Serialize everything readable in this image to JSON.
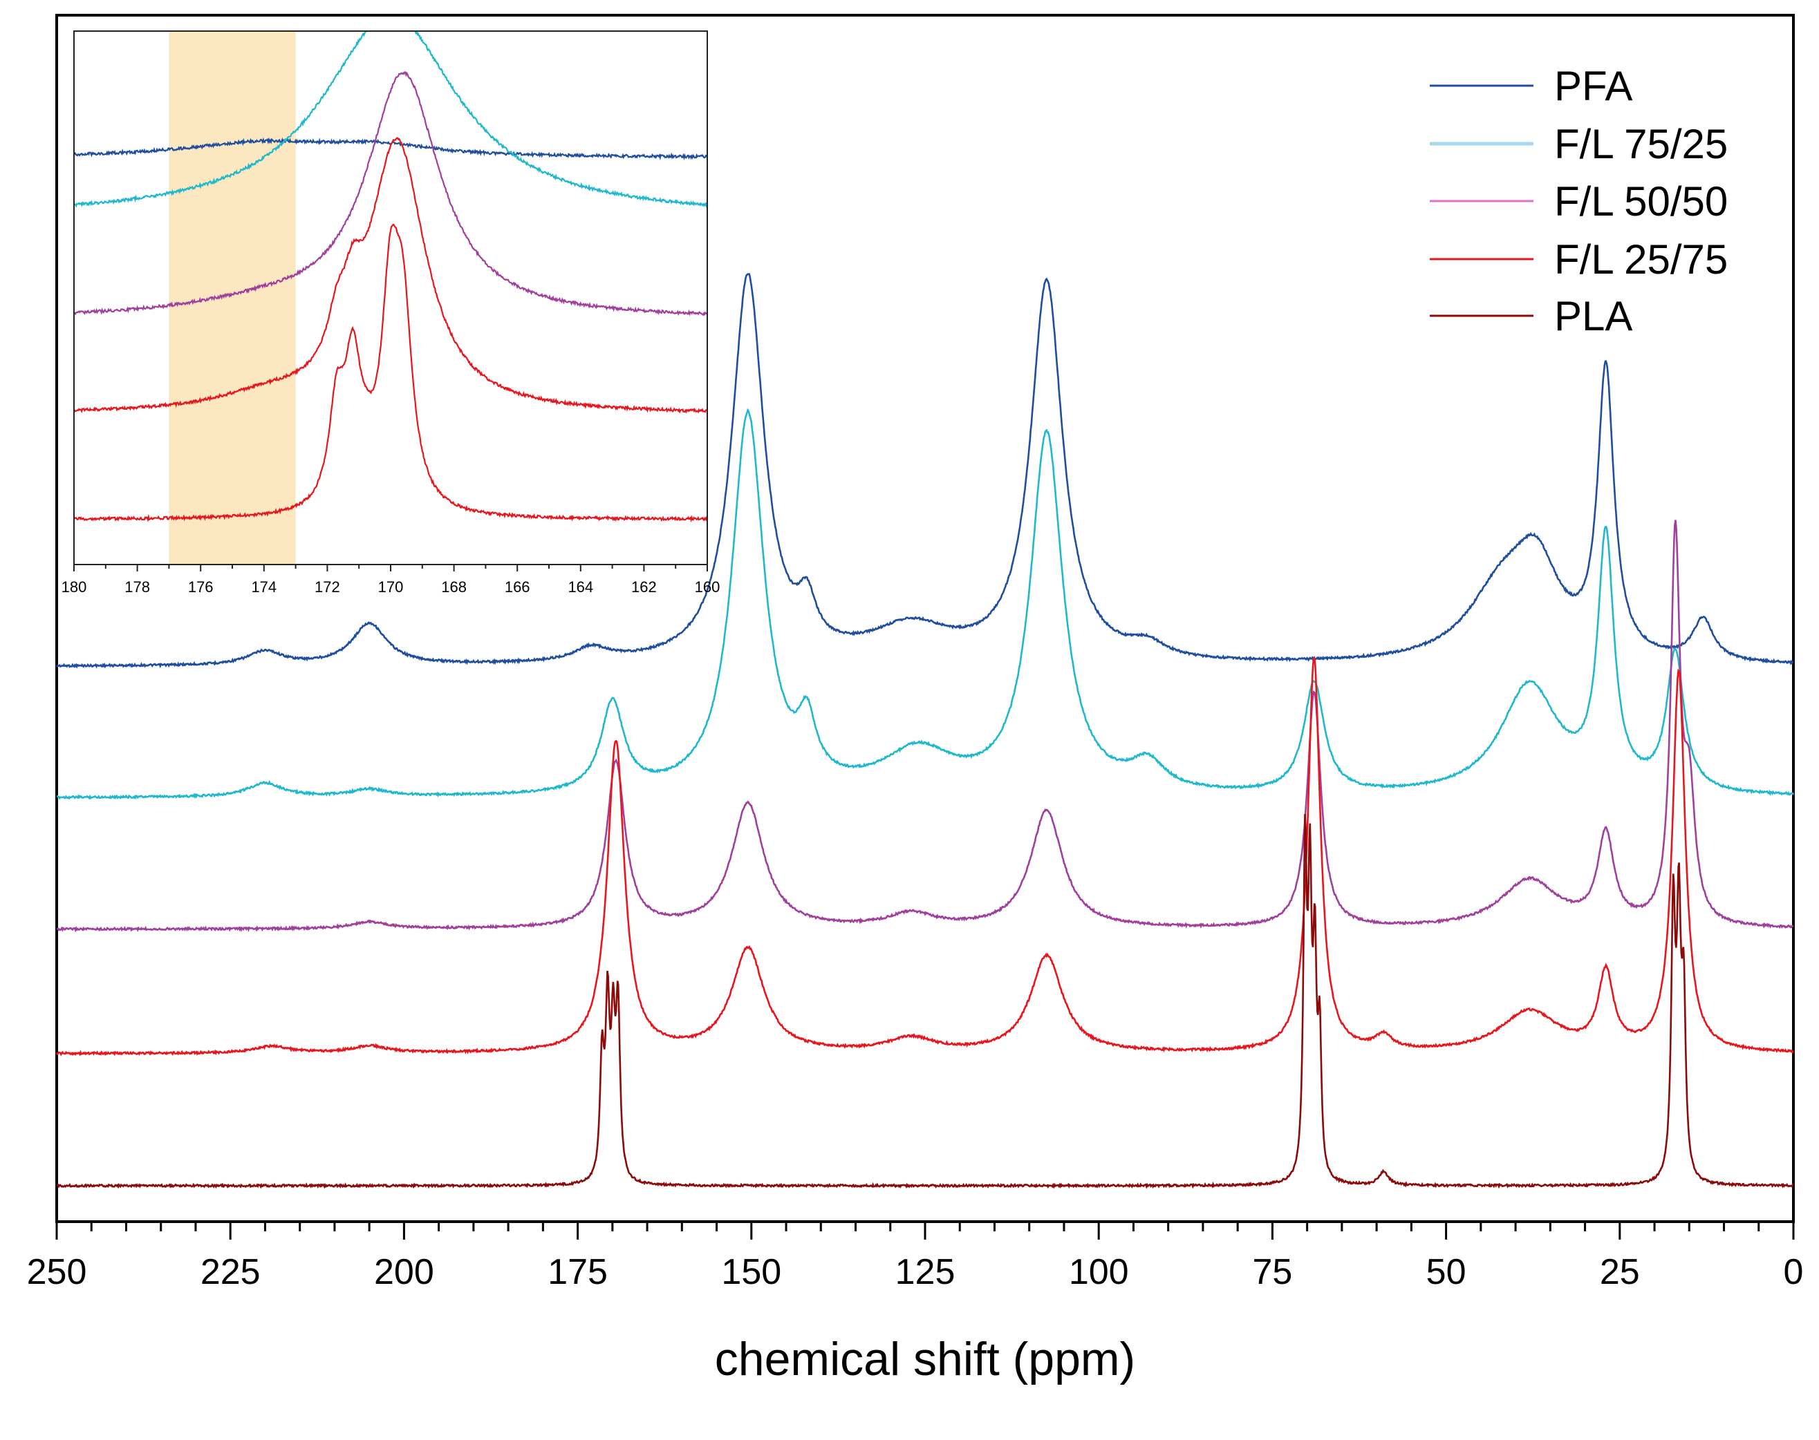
{
  "chart_data": {
    "type": "line",
    "title": "",
    "xlabel": "chemical shift (ppm)",
    "ylabel": "",
    "xlim": [
      250,
      0
    ],
    "x_reversed": true,
    "xticks": [
      250,
      225,
      200,
      175,
      150,
      125,
      100,
      75,
      50,
      25,
      0
    ],
    "xtick_labels": [
      "250",
      "225",
      "200",
      "175",
      "150",
      "125",
      "100",
      "75",
      "50",
      "25",
      "0"
    ],
    "minor_tick_step": 5,
    "legend_position": "top-right",
    "series": [
      {
        "name": "PFA",
        "color": "#1f4e9e",
        "baseline": 0,
        "peaks": [
          {
            "x": 220,
            "h": 0.02,
            "w": 3
          },
          {
            "x": 205,
            "h": 0.06,
            "w": 3
          },
          {
            "x": 173,
            "h": 0.02,
            "w": 3
          },
          {
            "x": 150.5,
            "h": 0.56,
            "w": 2.8
          },
          {
            "x": 142,
            "h": 0.06,
            "w": 1.5
          },
          {
            "x": 127,
            "h": 0.05,
            "w": 7
          },
          {
            "x": 107.5,
            "h": 0.55,
            "w": 2.8
          },
          {
            "x": 93,
            "h": 0.02,
            "w": 3
          },
          {
            "x": 42,
            "h": 0.1,
            "w": 6
          },
          {
            "x": 37,
            "h": 0.12,
            "w": 4
          },
          {
            "x": 27,
            "h": 0.41,
            "w": 1.4
          },
          {
            "x": 13,
            "h": 0.06,
            "w": 1.8
          }
        ]
      },
      {
        "name": "F/L 75/25",
        "color": "#1fb8cc",
        "baseline": 0,
        "peaks": [
          {
            "x": 220,
            "h": 0.02,
            "w": 3
          },
          {
            "x": 205,
            "h": 0.01,
            "w": 3
          },
          {
            "x": 170,
            "h": 0.13,
            "w": 2
          },
          {
            "x": 150.5,
            "h": 0.55,
            "w": 2.8
          },
          {
            "x": 142,
            "h": 0.08,
            "w": 1.5
          },
          {
            "x": 126,
            "h": 0.06,
            "w": 6
          },
          {
            "x": 107.5,
            "h": 0.52,
            "w": 2.8
          },
          {
            "x": 93,
            "h": 0.04,
            "w": 3
          },
          {
            "x": 69,
            "h": 0.16,
            "w": 1.8
          },
          {
            "x": 38,
            "h": 0.16,
            "w": 5
          },
          {
            "x": 27,
            "h": 0.36,
            "w": 1.4
          },
          {
            "x": 17,
            "h": 0.2,
            "w": 1.5
          }
        ]
      },
      {
        "name": "F/L 50/50",
        "color": "#a0409c",
        "baseline": 0,
        "peaks": [
          {
            "x": 205,
            "h": 0.01,
            "w": 3
          },
          {
            "x": 169.5,
            "h": 0.24,
            "w": 1.6
          },
          {
            "x": 150.5,
            "h": 0.18,
            "w": 2.8
          },
          {
            "x": 127,
            "h": 0.02,
            "w": 4
          },
          {
            "x": 107.5,
            "h": 0.17,
            "w": 2.8
          },
          {
            "x": 69,
            "h": 0.34,
            "w": 1.2
          },
          {
            "x": 38,
            "h": 0.07,
            "w": 5
          },
          {
            "x": 27,
            "h": 0.13,
            "w": 1.4
          },
          {
            "x": 17,
            "h": 0.55,
            "w": 0.8
          },
          {
            "x": 15,
            "h": 0.18,
            "w": 1
          }
        ]
      },
      {
        "name": "F/L 25/75",
        "color": "#e8161c",
        "baseline": 0,
        "peaks": [
          {
            "x": 219,
            "h": 0.01,
            "w": 3
          },
          {
            "x": 205,
            "h": 0.01,
            "w": 3
          },
          {
            "x": 169.5,
            "h": 0.45,
            "w": 1.5
          },
          {
            "x": 150.5,
            "h": 0.15,
            "w": 2.8
          },
          {
            "x": 127,
            "h": 0.02,
            "w": 4
          },
          {
            "x": 107.5,
            "h": 0.14,
            "w": 2.8
          },
          {
            "x": 69,
            "h": 0.57,
            "w": 1.1
          },
          {
            "x": 59,
            "h": 0.02,
            "w": 1.5
          },
          {
            "x": 38,
            "h": 0.06,
            "w": 5
          },
          {
            "x": 27,
            "h": 0.11,
            "w": 1.3
          },
          {
            "x": 16.5,
            "h": 0.55,
            "w": 1.1
          }
        ]
      },
      {
        "name": "PLA",
        "color": "#8b0a0a",
        "baseline": 0,
        "peaks": [
          {
            "x": 171.5,
            "h": 0.17,
            "w": 0.35
          },
          {
            "x": 170.7,
            "h": 0.24,
            "w": 0.35
          },
          {
            "x": 169.9,
            "h": 0.2,
            "w": 0.35
          },
          {
            "x": 169.2,
            "h": 0.24,
            "w": 0.35
          },
          {
            "x": 70.3,
            "h": 0.46,
            "w": 0.3
          },
          {
            "x": 69.6,
            "h": 0.4,
            "w": 0.3
          },
          {
            "x": 68.9,
            "h": 0.3,
            "w": 0.3
          },
          {
            "x": 68.2,
            "h": 0.2,
            "w": 0.3
          },
          {
            "x": 59,
            "h": 0.02,
            "w": 0.8
          },
          {
            "x": 17.3,
            "h": 0.38,
            "w": 0.35
          },
          {
            "x": 16.5,
            "h": 0.36,
            "w": 0.35
          },
          {
            "x": 15.8,
            "h": 0.25,
            "w": 0.35
          }
        ]
      }
    ],
    "inset": {
      "xlim": [
        180,
        160
      ],
      "xticks": [
        180,
        178,
        176,
        174,
        172,
        170,
        168,
        166,
        164,
        162,
        160
      ],
      "xtick_labels": [
        "180",
        "178",
        "176",
        "174",
        "172",
        "170",
        "168",
        "166",
        "164",
        "162",
        "160"
      ],
      "highlight_range": [
        177,
        173
      ],
      "highlight_color": "#fbe7c0",
      "series": [
        {
          "name": "PFA",
          "color": "#1f4e9e",
          "peaks": [
            {
              "x": 174,
              "h": 0.03,
              "w": 3
            },
            {
              "x": 170.3,
              "h": 0.02,
              "w": 2
            }
          ]
        },
        {
          "name": "F/L 75/25",
          "color": "#1fb8cc",
          "peaks": [
            {
              "x": 170,
              "h": 0.42,
              "w": 2.6
            }
          ]
        },
        {
          "name": "F/L 50/50",
          "color": "#a0409c",
          "peaks": [
            {
              "x": 169.6,
              "h": 1.1,
              "w": 1.4
            },
            {
              "x": 174,
              "h": 0.05,
              "w": 3
            }
          ]
        },
        {
          "name": "F/L 25/75",
          "color": "#e8161c",
          "peaks": [
            {
              "x": 171.7,
              "h": 0.2,
              "w": 0.35
            },
            {
              "x": 171.2,
              "h": 0.25,
              "w": 0.35
            },
            {
              "x": 169.8,
              "h": 1.3,
              "w": 1.1
            },
            {
              "x": 174,
              "h": 0.06,
              "w": 1.8
            }
          ]
        },
        {
          "name": "PLA",
          "color": "#e8161c",
          "peaks": [
            {
              "x": 171.7,
              "h": 0.28,
              "w": 0.3
            },
            {
              "x": 171.2,
              "h": 0.36,
              "w": 0.3
            },
            {
              "x": 170.0,
              "h": 0.58,
              "w": 0.35
            },
            {
              "x": 169.6,
              "h": 0.48,
              "w": 0.35
            },
            {
              "x": 170.8,
              "h": 0.1,
              "w": 0.4
            }
          ]
        }
      ]
    }
  }
}
